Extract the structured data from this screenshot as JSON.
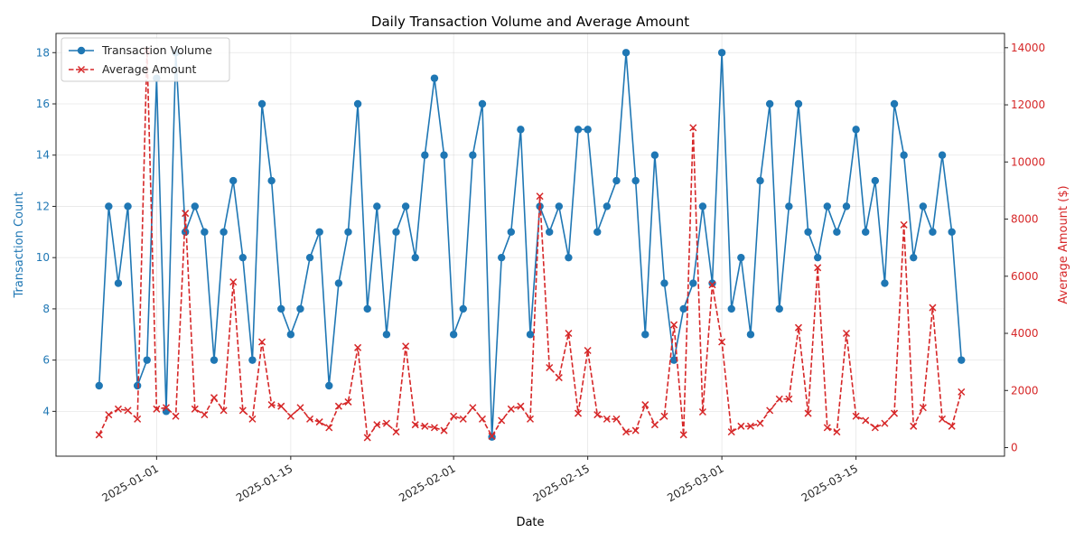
{
  "chart_data": {
    "type": "line",
    "title": "Daily Transaction Volume and Average Amount",
    "xlabel": "Date",
    "ylabel_left": "Transaction Count",
    "ylabel_right": "Average Amount ($)",
    "x_start": "2024-12-26",
    "x_ticks": [
      "2025-01-01",
      "2025-01-15",
      "2025-02-01",
      "2025-02-15",
      "2025-03-01",
      "2025-03-15"
    ],
    "ylim_left": [
      2.25,
      18.75
    ],
    "yticks_left": [
      4,
      6,
      8,
      10,
      12,
      14,
      16,
      18
    ],
    "ylim_right": [
      -300,
      14500
    ],
    "yticks_right": [
      0,
      2000,
      4000,
      6000,
      8000,
      10000,
      12000,
      14000
    ],
    "grid": true,
    "legend_position": "top-left",
    "colors": {
      "left_axis": "#1f77b4",
      "right_axis": "#d62728"
    },
    "series": [
      {
        "name": "Transaction Volume",
        "axis": "left",
        "style": "solid-circle",
        "values": [
          5,
          12,
          9,
          12,
          5,
          6,
          17,
          4,
          18,
          11,
          12,
          11,
          6,
          11,
          13,
          10,
          6,
          16,
          13,
          8,
          7,
          8,
          10,
          11,
          5,
          9,
          11,
          16,
          8,
          12,
          7,
          11,
          12,
          10,
          14,
          17,
          14,
          7,
          8,
          14,
          16,
          3,
          10,
          11,
          15,
          7,
          12,
          11,
          12,
          10,
          15,
          15,
          11,
          12,
          13,
          18,
          13,
          7,
          14,
          9,
          6,
          8,
          9,
          12,
          9,
          18,
          8,
          10,
          7,
          13,
          16,
          8,
          12,
          16,
          11,
          10,
          12,
          11,
          12,
          15,
          11,
          13,
          9,
          16,
          14,
          10,
          12,
          11,
          14,
          11,
          6
        ]
      },
      {
        "name": "Average Amount",
        "axis": "right",
        "style": "dashed-x",
        "values": [
          450,
          1150,
          1350,
          1300,
          1000,
          13900,
          1350,
          1400,
          1100,
          8200,
          1350,
          1150,
          1750,
          1300,
          5800,
          1300,
          1000,
          3700,
          1500,
          1450,
          1100,
          1400,
          1000,
          900,
          700,
          1450,
          1600,
          3500,
          350,
          800,
          850,
          550,
          3550,
          800,
          750,
          700,
          600,
          1100,
          1000,
          1400,
          1000,
          400,
          950,
          1350,
          1450,
          1000,
          8800,
          2800,
          2450,
          4000,
          1200,
          3400,
          1150,
          1000,
          1000,
          550,
          600,
          1500,
          800,
          1100,
          4300,
          450,
          11200,
          1250,
          5700,
          3700,
          550,
          750,
          750,
          850,
          1300,
          1700,
          1700,
          4200,
          1200,
          6300,
          700,
          550,
          4000,
          1100,
          950,
          700,
          850,
          1200,
          7800,
          750,
          1400,
          4900,
          1000,
          750,
          1950
        ]
      }
    ]
  }
}
